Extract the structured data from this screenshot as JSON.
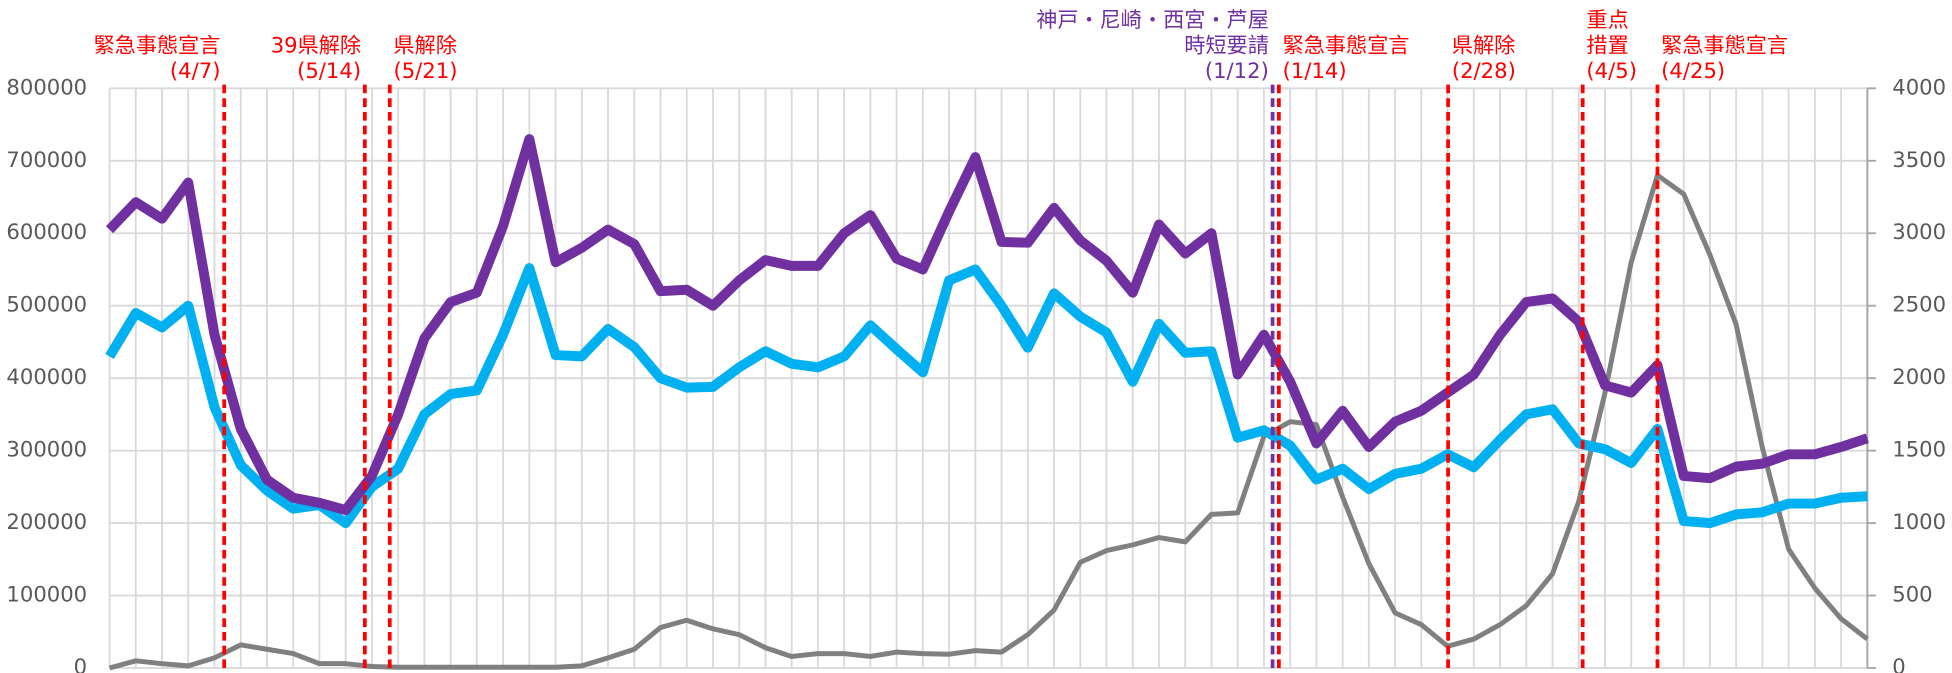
{
  "chart_data": {
    "type": "line",
    "categories": [
      null,
      null,
      null,
      null,
      null,
      null,
      null,
      null,
      null,
      null,
      null,
      null,
      null,
      null,
      null,
      null,
      null,
      null,
      null,
      null,
      null,
      null,
      null,
      null,
      null,
      null,
      null,
      null,
      null,
      null,
      null,
      null,
      null,
      null,
      null,
      null,
      null,
      null,
      null,
      null,
      null,
      null,
      null,
      null,
      null,
      null,
      null,
      null,
      null,
      null,
      null,
      null,
      null,
      null,
      null,
      null,
      null,
      null,
      null,
      null,
      null,
      null,
      null,
      null,
      null,
      null,
      null,
      null
    ],
    "series": [
      {
        "color": "#7030a0",
        "values": [
          605000,
          643000,
          620000,
          670000,
          460000,
          330000,
          260000,
          235000,
          228000,
          218000,
          265000,
          350000,
          455000,
          505000,
          518000,
          610000,
          730000,
          560000,
          580000,
          605000,
          585000,
          520000,
          522000,
          500000,
          535000,
          563000,
          555000,
          555000,
          600000,
          625000,
          565000,
          550000,
          630000,
          705000,
          588000,
          587000,
          635000,
          590000,
          562000,
          518000,
          612000,
          572000,
          600000,
          405000,
          460000,
          395000,
          310000,
          355000,
          305000,
          340000,
          355000,
          380000,
          405000,
          460000,
          505000,
          510000,
          478000,
          390000,
          380000,
          418000,
          265000,
          262000,
          278000,
          282000,
          295000,
          295000,
          305000,
          317000
        ]
      },
      {
        "color": "#00b0f0",
        "values": [
          430000,
          490000,
          470000,
          500000,
          360000,
          280000,
          245000,
          220000,
          225000,
          200000,
          250000,
          275000,
          350000,
          378000,
          383000,
          460000,
          552000,
          432000,
          430000,
          468000,
          443000,
          400000,
          387000,
          388000,
          415000,
          437000,
          420000,
          415000,
          430000,
          473000,
          440000,
          408000,
          535000,
          550000,
          500000,
          442000,
          517000,
          485000,
          463000,
          395000,
          475000,
          435000,
          437000,
          318000,
          328000,
          307000,
          260000,
          275000,
          247000,
          268000,
          275000,
          295000,
          277000,
          315000,
          350000,
          357000,
          310000,
          302000,
          283000,
          330000,
          203000,
          200000,
          212000,
          215000,
          227000,
          227000,
          235000,
          237000
        ]
      },
      {
        "color": "#808080",
        "axis": "y2",
        "values": [
          0,
          50,
          30,
          15,
          70,
          160,
          130,
          100,
          30,
          30,
          10,
          5,
          5,
          5,
          5,
          5,
          5,
          5,
          15,
          70,
          130,
          280,
          330,
          270,
          230,
          140,
          80,
          100,
          100,
          80,
          110,
          100,
          95,
          120,
          110,
          230,
          400,
          730,
          810,
          850,
          900,
          870,
          1060,
          1070,
          1600,
          1700,
          1680,
          1180,
          720,
          380,
          300,
          150,
          200,
          300,
          430,
          650,
          1150,
          1900,
          2800,
          3400,
          3270,
          2850,
          2370,
          1520,
          820,
          550,
          340,
          200
        ]
      }
    ],
    "ylim": [
      0,
      800000
    ],
    "yticks": [
      0,
      100000,
      200000,
      300000,
      400000,
      500000,
      600000,
      700000,
      800000
    ],
    "y2lim": [
      0,
      4000
    ],
    "y2ticks": [
      0,
      500,
      1000,
      1500,
      2000,
      2500,
      3000,
      3500,
      4000
    ],
    "grid": true,
    "events": [
      {
        "x": 4.37,
        "color": "#ff0000",
        "side": "left",
        "label": [
          "緊急事態宣言",
          "(4/7)"
        ]
      },
      {
        "x": 9.73,
        "color": "#ff0000",
        "side": "left",
        "label": [
          "39県解除",
          "(5/14)"
        ]
      },
      {
        "x": 10.68,
        "color": "#ff0000",
        "side": "right",
        "label": [
          "県解除",
          "(5/21)"
        ]
      },
      {
        "x": 44.33,
        "color": "#7030a0",
        "side": "left",
        "label": [
          "神戸・尼崎・西宮・芦屋",
          "時短要請",
          "(1/12)"
        ]
      },
      {
        "x": 44.57,
        "color": "#ff0000",
        "side": "right",
        "label": [
          "緊急事態宣言",
          "(1/14)"
        ]
      },
      {
        "x": 51.02,
        "color": "#ff0000",
        "side": "right",
        "label": [
          "県解除",
          "(2/28)"
        ]
      },
      {
        "x": 56.15,
        "color": "#ff0000",
        "side": "right",
        "label": [
          "重点",
          "措置",
          "(4/5)"
        ]
      },
      {
        "x": 59.0,
        "color": "#ff0000",
        "side": "right",
        "label": [
          "緊急事態宣言",
          "(4/25)"
        ]
      }
    ]
  }
}
